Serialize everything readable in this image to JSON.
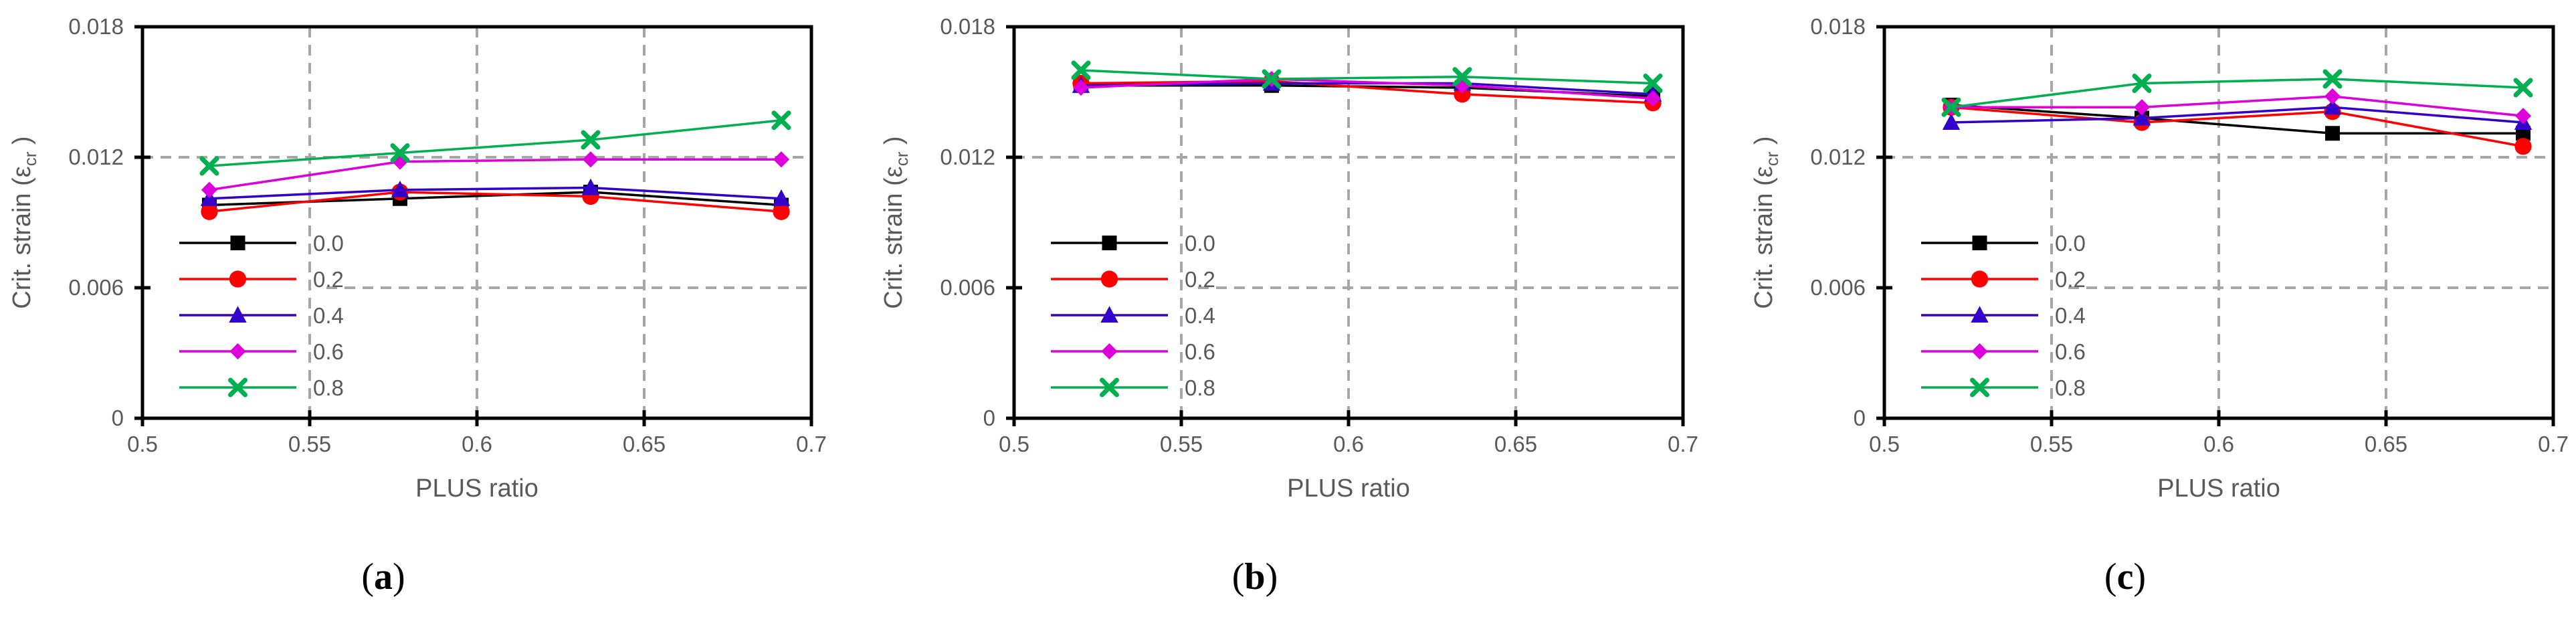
{
  "chart_data": [
    {
      "type": "line",
      "panel_label": "(a)",
      "panel_letter": "a",
      "xlabel": "PLUS ratio",
      "ylabel": "Crit. strain (ε",
      "ylabel_sub": "cr",
      "ylabel_end": " )",
      "xlim": [
        0.5,
        0.7
      ],
      "ylim": [
        0,
        0.018
      ],
      "xticks": [
        0.5,
        0.55,
        0.6,
        0.65,
        0.7
      ],
      "xtick_labels": [
        "0.5",
        "0.55",
        "0.6",
        "0.65",
        "0.7"
      ],
      "yticks": [
        0,
        0.006,
        0.012,
        0.018
      ],
      "ytick_labels": [
        "0",
        "0.006",
        "0.012",
        "0.018"
      ],
      "grid": true,
      "legend_position": "left",
      "x": [
        0.52,
        0.577,
        0.634,
        0.691
      ],
      "series": [
        {
          "name": "0.0",
          "values": [
            0.0098,
            0.0101,
            0.0104,
            0.0098
          ]
        },
        {
          "name": "0.2",
          "values": [
            0.0095,
            0.0104,
            0.0102,
            0.0095
          ]
        },
        {
          "name": "0.4",
          "values": [
            0.0101,
            0.0105,
            0.0106,
            0.0101
          ]
        },
        {
          "name": "0.6",
          "values": [
            0.0105,
            0.0118,
            0.0119,
            0.0119
          ]
        },
        {
          "name": "0.8",
          "values": [
            0.0116,
            0.0122,
            0.0128,
            0.0137
          ]
        }
      ]
    },
    {
      "type": "line",
      "panel_label": "(b)",
      "panel_letter": "b",
      "xlabel": "PLUS ratio",
      "ylabel": "Crit. strain (ε",
      "ylabel_sub": "cr",
      "ylabel_end": " )",
      "xlim": [
        0.5,
        0.7
      ],
      "ylim": [
        0,
        0.018
      ],
      "xticks": [
        0.5,
        0.55,
        0.6,
        0.65,
        0.7
      ],
      "xtick_labels": [
        "0.5",
        "0.55",
        "0.6",
        "0.65",
        "0.7"
      ],
      "yticks": [
        0,
        0.006,
        0.012,
        0.018
      ],
      "ytick_labels": [
        "0",
        "0.006",
        "0.012",
        "0.018"
      ],
      "grid": true,
      "legend_position": "left",
      "x": [
        0.52,
        0.577,
        0.634,
        0.691
      ],
      "series": [
        {
          "name": "0.0",
          "values": [
            0.0153,
            0.0153,
            0.0152,
            0.0148
          ]
        },
        {
          "name": "0.2",
          "values": [
            0.0154,
            0.0155,
            0.0149,
            0.0145
          ]
        },
        {
          "name": "0.4",
          "values": [
            0.0153,
            0.0154,
            0.0154,
            0.0149
          ]
        },
        {
          "name": "0.6",
          "values": [
            0.0152,
            0.0156,
            0.0153,
            0.0147
          ]
        },
        {
          "name": "0.8",
          "values": [
            0.016,
            0.0156,
            0.0157,
            0.0154
          ]
        }
      ]
    },
    {
      "type": "line",
      "panel_label": "(c)",
      "panel_letter": "c",
      "xlabel": "PLUS ratio",
      "ylabel": "Crit. strain (ε",
      "ylabel_sub": "cr",
      "ylabel_end": " )",
      "xlim": [
        0.5,
        0.7
      ],
      "ylim": [
        0,
        0.018
      ],
      "xticks": [
        0.5,
        0.55,
        0.6,
        0.65,
        0.7
      ],
      "xtick_labels": [
        "0.5",
        "0.55",
        "0.6",
        "0.65",
        "0.7"
      ],
      "yticks": [
        0,
        0.006,
        0.012,
        0.018
      ],
      "ytick_labels": [
        "0",
        "0.006",
        "0.012",
        "0.018"
      ],
      "grid": true,
      "legend_position": "left",
      "x": [
        0.52,
        0.577,
        0.634,
        0.691
      ],
      "series": [
        {
          "name": "0.0",
          "values": [
            0.0144,
            0.0138,
            0.0131,
            0.0131
          ]
        },
        {
          "name": "0.2",
          "values": [
            0.0143,
            0.0136,
            0.0141,
            0.0125
          ]
        },
        {
          "name": "0.4",
          "values": [
            0.0136,
            0.0138,
            0.0143,
            0.0136
          ]
        },
        {
          "name": "0.6",
          "values": [
            0.0143,
            0.0143,
            0.0148,
            0.0139
          ]
        },
        {
          "name": "0.8",
          "values": [
            0.0143,
            0.0154,
            0.0156,
            0.0152
          ]
        }
      ]
    }
  ],
  "series_styles": [
    {
      "color": "#000000",
      "marker": "square"
    },
    {
      "color": "#ff0000",
      "marker": "circle"
    },
    {
      "color": "#3300cc",
      "marker": "triangle"
    },
    {
      "color": "#dd00dd",
      "marker": "diamond"
    },
    {
      "color": "#00b050",
      "marker": "x"
    }
  ],
  "colors": {
    "axis": "#000000",
    "grid": "#a6a6a6",
    "tick_text": "#595959",
    "label_text": "#595959",
    "panel_label_text": "#000000"
  }
}
